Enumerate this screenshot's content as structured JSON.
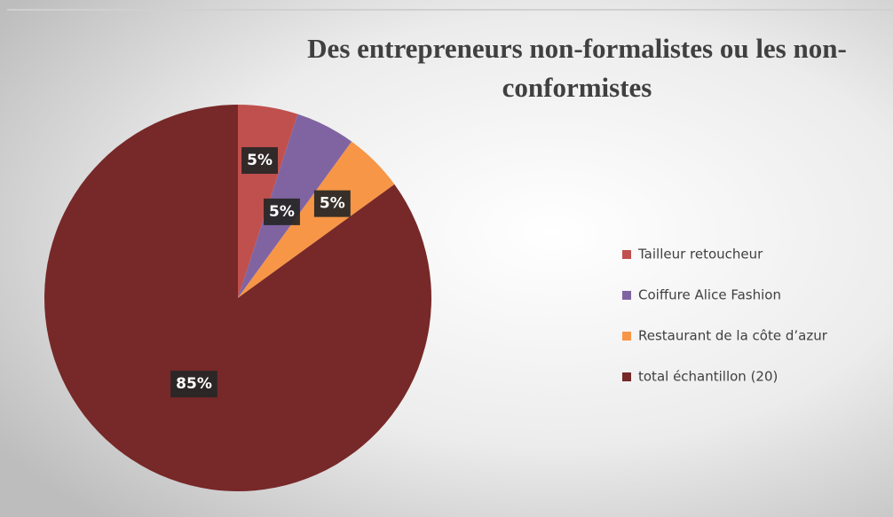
{
  "chart_data": {
    "type": "pie",
    "title": [
      "Des entrepreneurs non-formalistes ou les non-",
      "conformistes"
    ],
    "categories": [
      "Tailleur retoucheur",
      "Coiffure Alice Fashion",
      "Restaurant de la côte d’azur",
      "total échantillon (20)"
    ],
    "values": [
      5,
      5,
      5,
      85
    ],
    "value_labels": [
      "5%",
      "5%",
      "5%",
      "85%"
    ],
    "colors": [
      "#c0504d",
      "#8064a2",
      "#f79646",
      "#772828"
    ],
    "legend": "right"
  }
}
